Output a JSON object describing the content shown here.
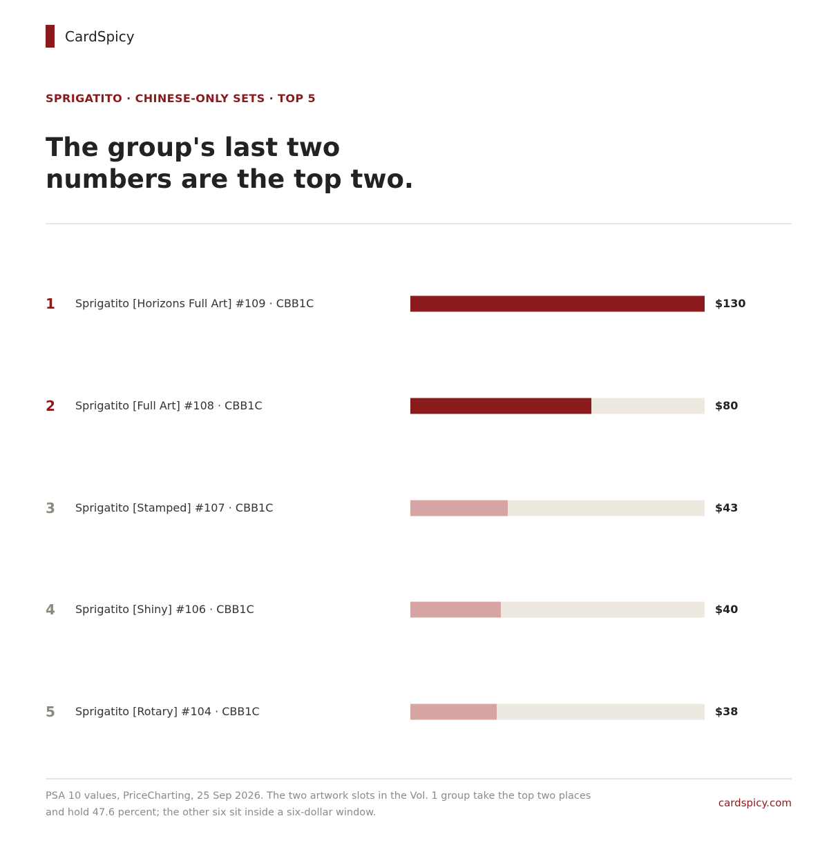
{
  "brand": {
    "name": "CardSpicy"
  },
  "eyebrow": "SPRIGATITO · CHINESE-ONLY SETS · TOP 5",
  "headline": {
    "line1": "The group's last two",
    "line2": "numbers are the top two."
  },
  "chart_data": {
    "type": "bar",
    "orientation": "horizontal",
    "ranks": [
      "1",
      "2",
      "3",
      "4",
      "5"
    ],
    "categories": [
      "Sprigatito [Horizons Full Art] #109 · CBB1C",
      "Sprigatito [Full Art] #108 · CBB1C",
      "Sprigatito [Stamped] #107 · CBB1C",
      "Sprigatito [Shiny] #106 · CBB1C",
      "Sprigatito [Rotary] #104 · CBB1C"
    ],
    "values": [
      130,
      80,
      43,
      40,
      38
    ],
    "value_labels": [
      "$130",
      "$80",
      "$43",
      "$40",
      "$38"
    ],
    "xlim": [
      0,
      130
    ],
    "highlighted": [
      true,
      true,
      false,
      false,
      false
    ],
    "grid": false,
    "colors": {
      "highlight": "#8b1a1c",
      "muted": "#d6a5a3",
      "track": "#ede9e1",
      "rank_highlight": "#8b1a1c",
      "rank_muted": "#8a8a7e"
    }
  },
  "footer": {
    "note_line1": "PSA 10 values, PriceCharting, 25 Sep 2026. The two artwork slots in the Vol. 1 group take the top two places",
    "note_line2": "and hold 47.6 percent; the other six sit inside a six-dollar window.",
    "site": "cardspicy.com"
  }
}
